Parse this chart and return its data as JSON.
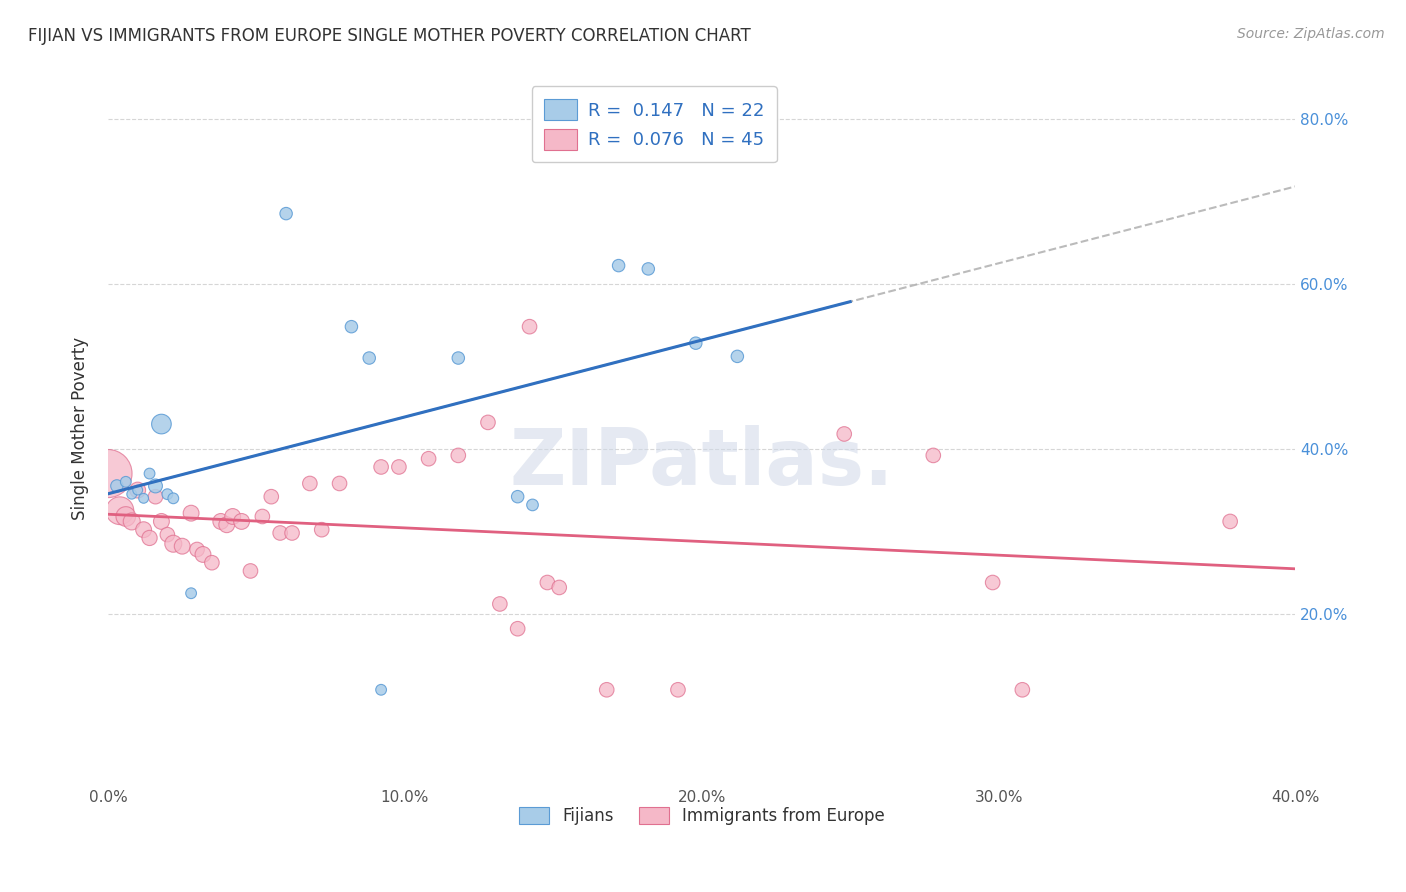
{
  "title": "FIJIAN VS IMMIGRANTS FROM EUROPE SINGLE MOTHER POVERTY CORRELATION CHART",
  "source": "Source: ZipAtlas.com",
  "xlim": [
    0.0,
    0.4
  ],
  "ylim": [
    0.0,
    0.85
  ],
  "ylabel": "Single Mother Poverty",
  "legend_labels": [
    "Fijians",
    "Immigrants from Europe"
  ],
  "fijian_R": "0.147",
  "fijian_N": "22",
  "europe_R": "0.076",
  "europe_N": "45",
  "fijian_color": "#a8cce8",
  "europe_color": "#f5b8c8",
  "fijian_edge_color": "#5b9bd5",
  "europe_edge_color": "#e07090",
  "fijian_line_color": "#3070c0",
  "europe_line_color": "#e06080",
  "dashed_line_color": "#aaaaaa",
  "fijian_scatter": [
    [
      0.003,
      0.355
    ],
    [
      0.006,
      0.36
    ],
    [
      0.008,
      0.345
    ],
    [
      0.01,
      0.35
    ],
    [
      0.012,
      0.34
    ],
    [
      0.014,
      0.37
    ],
    [
      0.016,
      0.355
    ],
    [
      0.018,
      0.43
    ],
    [
      0.02,
      0.345
    ],
    [
      0.022,
      0.34
    ],
    [
      0.028,
      0.225
    ],
    [
      0.06,
      0.685
    ],
    [
      0.082,
      0.548
    ],
    [
      0.088,
      0.51
    ],
    [
      0.118,
      0.51
    ],
    [
      0.138,
      0.342
    ],
    [
      0.143,
      0.332
    ],
    [
      0.172,
      0.622
    ],
    [
      0.182,
      0.618
    ],
    [
      0.198,
      0.528
    ],
    [
      0.212,
      0.512
    ],
    [
      0.092,
      0.108
    ]
  ],
  "europe_scatter": [
    [
      0.0,
      0.37
    ],
    [
      0.004,
      0.325
    ],
    [
      0.006,
      0.318
    ],
    [
      0.008,
      0.312
    ],
    [
      0.01,
      0.35
    ],
    [
      0.012,
      0.302
    ],
    [
      0.014,
      0.292
    ],
    [
      0.016,
      0.342
    ],
    [
      0.018,
      0.312
    ],
    [
      0.02,
      0.296
    ],
    [
      0.022,
      0.285
    ],
    [
      0.025,
      0.282
    ],
    [
      0.028,
      0.322
    ],
    [
      0.03,
      0.278
    ],
    [
      0.032,
      0.272
    ],
    [
      0.035,
      0.262
    ],
    [
      0.038,
      0.312
    ],
    [
      0.04,
      0.308
    ],
    [
      0.042,
      0.318
    ],
    [
      0.045,
      0.312
    ],
    [
      0.048,
      0.252
    ],
    [
      0.052,
      0.318
    ],
    [
      0.055,
      0.342
    ],
    [
      0.058,
      0.298
    ],
    [
      0.062,
      0.298
    ],
    [
      0.068,
      0.358
    ],
    [
      0.072,
      0.302
    ],
    [
      0.078,
      0.358
    ],
    [
      0.092,
      0.378
    ],
    [
      0.098,
      0.378
    ],
    [
      0.108,
      0.388
    ],
    [
      0.118,
      0.392
    ],
    [
      0.128,
      0.432
    ],
    [
      0.132,
      0.212
    ],
    [
      0.138,
      0.182
    ],
    [
      0.142,
      0.548
    ],
    [
      0.148,
      0.238
    ],
    [
      0.152,
      0.232
    ],
    [
      0.168,
      0.108
    ],
    [
      0.192,
      0.108
    ],
    [
      0.248,
      0.418
    ],
    [
      0.278,
      0.392
    ],
    [
      0.298,
      0.238
    ],
    [
      0.308,
      0.108
    ],
    [
      0.378,
      0.312
    ]
  ],
  "fijian_sizes": [
    80,
    60,
    50,
    50,
    50,
    60,
    100,
    200,
    60,
    60,
    60,
    80,
    80,
    80,
    80,
    80,
    70,
    80,
    80,
    80,
    80,
    60
  ],
  "europe_sizes": [
    1200,
    400,
    200,
    150,
    130,
    130,
    120,
    110,
    130,
    110,
    150,
    130,
    130,
    110,
    130,
    110,
    130,
    130,
    130,
    130,
    110,
    110,
    110,
    110,
    110,
    110,
    110,
    110,
    110,
    110,
    110,
    110,
    110,
    110,
    110,
    110,
    110,
    110,
    110,
    110,
    110,
    110,
    110,
    110,
    110
  ]
}
